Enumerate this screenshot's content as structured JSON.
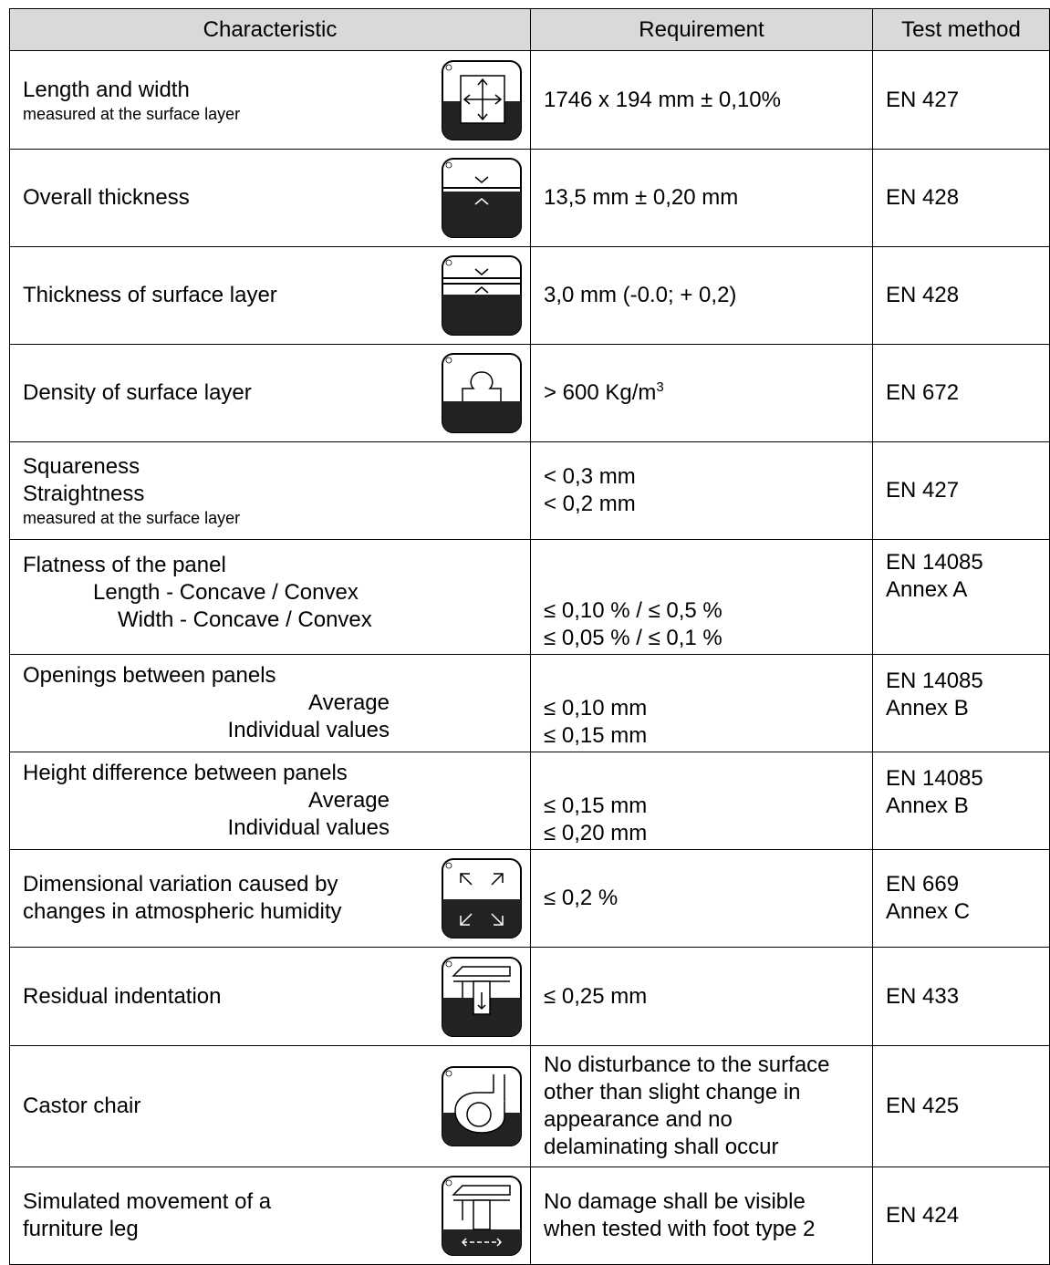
{
  "headers": {
    "characteristic": "Characteristic",
    "requirement": "Requirement",
    "test_method": "Test method"
  },
  "rows": [
    {
      "char": [
        "Length and width"
      ],
      "note": "measured at the surface layer",
      "icon": "dimensions-icon",
      "req": [
        "1746 x 194 mm ± 0,10%"
      ],
      "test": [
        "EN 427"
      ]
    },
    {
      "char": [
        "Overall thickness"
      ],
      "icon": "thickness-icon",
      "req": [
        "13,5 mm ± 0,20 mm"
      ],
      "test": [
        "EN 428"
      ]
    },
    {
      "char": [
        "Thickness of surface layer"
      ],
      "icon": "surface-thickness-icon",
      "req": [
        "3,0 mm (-0.0; + 0,2)"
      ],
      "test": [
        "EN 428"
      ]
    },
    {
      "char": [
        "Density of surface layer"
      ],
      "icon": "weight-icon",
      "req_main": "> 600 Kg/m",
      "req_sup": "3",
      "test": [
        "EN 672"
      ]
    },
    {
      "char": [
        "Squareness",
        "Straightness"
      ],
      "note": "measured at the surface layer",
      "req": [
        "< 0,3 mm",
        "< 0,2 mm"
      ],
      "test": [
        "EN 427"
      ]
    },
    {
      "char": [
        "Flatness of the panel"
      ],
      "sub": [
        "Length - Concave / Convex",
        "Width - Concave / Convex"
      ],
      "req": [
        "≤ 0,10 % / ≤ 0,5 %",
        "≤ 0,05 % / ≤ 0,1 %"
      ],
      "test": [
        "EN 14085",
        "Annex A"
      ]
    },
    {
      "char": [
        "Openings between panels"
      ],
      "sub": [
        "Average",
        "Individual values"
      ],
      "req": [
        "≤ 0,10 mm",
        "≤ 0,15 mm"
      ],
      "test": [
        "EN 14085",
        "Annex B"
      ]
    },
    {
      "char": [
        "Height difference between panels"
      ],
      "sub": [
        "Average",
        "Individual values"
      ],
      "req": [
        "≤ 0,15 mm",
        "≤ 0,20 mm"
      ],
      "test": [
        "EN 14085",
        "Annex B"
      ]
    },
    {
      "char": [
        "Dimensional variation caused by",
        "changes in atmospheric humidity"
      ],
      "icon": "humidity-variation-icon",
      "req": [
        "≤ 0,2 %"
      ],
      "test": [
        "EN 669",
        "Annex C"
      ]
    },
    {
      "char": [
        "Residual indentation"
      ],
      "icon": "indentation-icon",
      "req": [
        "≤ 0,25 mm"
      ],
      "test": [
        "EN 433"
      ]
    },
    {
      "char": [
        "Castor chair"
      ],
      "icon": "castor-chair-icon",
      "req": [
        "No disturbance to the surface",
        "other than slight change in",
        "appearance and no",
        "delaminating shall occur"
      ],
      "test": [
        "EN 425"
      ]
    },
    {
      "char": [
        "Simulated movement of a",
        "furniture leg"
      ],
      "icon": "furniture-leg-icon",
      "req": [
        "No damage shall be visible",
        "when tested with foot type 2"
      ],
      "test": [
        "EN 424"
      ]
    }
  ]
}
